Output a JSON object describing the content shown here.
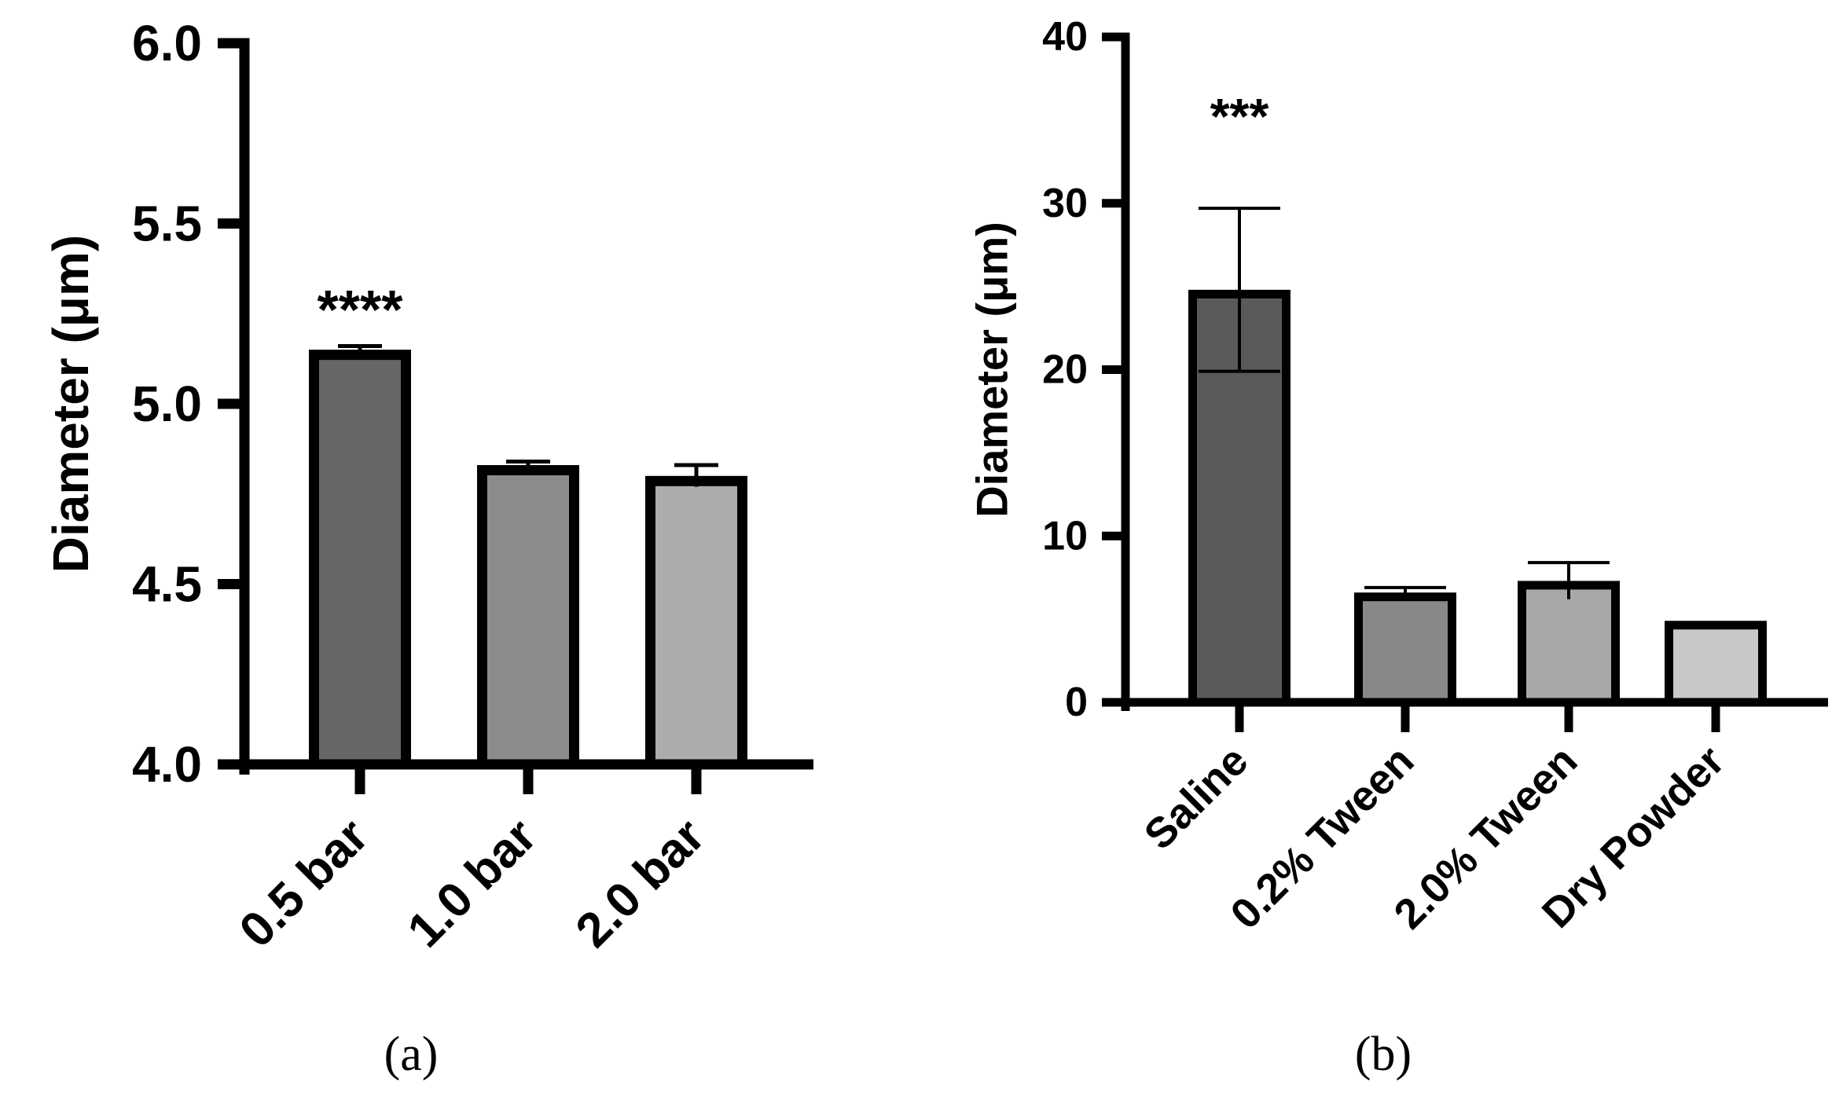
{
  "chart_data": [
    {
      "type": "bar",
      "panel_label": "(a)",
      "categories": [
        "0.5 bar",
        "1.0 bar",
        "2.0 bar"
      ],
      "values": [
        5.15,
        4.83,
        4.8
      ],
      "errors": [
        0.01,
        0.01,
        0.03
      ],
      "colors": [
        "#666666",
        "#8c8c8c",
        "#acacac"
      ],
      "ylabel": "Diameter (μm)",
      "ylim": [
        4.0,
        6.0
      ],
      "yticks": [
        "4.0",
        "4.5",
        "5.0",
        "5.5",
        "6.0"
      ],
      "significance": [
        {
          "category": "0.5 bar",
          "label": "****"
        }
      ]
    },
    {
      "type": "bar",
      "panel_label": "(b)",
      "categories": [
        "Saline",
        "0.2% Tween",
        "2.0% Tween",
        "Dry Powder"
      ],
      "values": [
        24.8,
        6.6,
        7.3,
        4.9
      ],
      "errors": [
        4.9,
        0.3,
        1.1,
        0
      ],
      "colors": [
        "#5a5a5a",
        "#888888",
        "#a8a8a8",
        "#c8c8c8"
      ],
      "ylabel": "Diameter (μm)",
      "ylim": [
        0,
        40
      ],
      "yticks": [
        "0",
        "10",
        "20",
        "30",
        "40"
      ],
      "significance": [
        {
          "category": "Saline",
          "label": "***"
        }
      ]
    }
  ]
}
